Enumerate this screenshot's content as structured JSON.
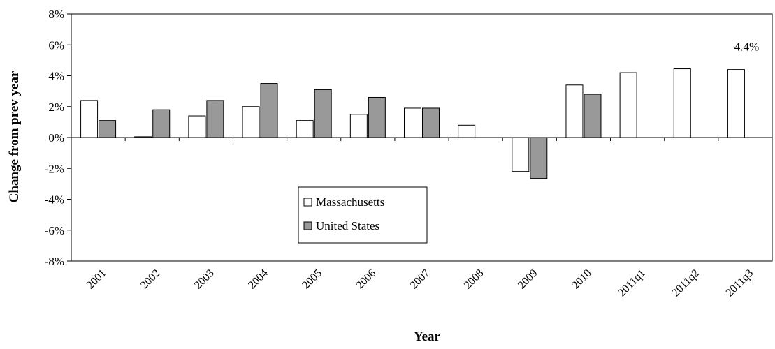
{
  "chart_data": {
    "type": "bar",
    "categories": [
      "2001",
      "2002",
      "2003",
      "2004",
      "2005",
      "2006",
      "2007",
      "2008",
      "2009",
      "2010",
      "2011q1",
      "2011q2",
      "2011q3"
    ],
    "series": [
      {
        "name": "Massachusetts",
        "color": "#ffffff",
        "values": [
          2.4,
          0.05,
          1.4,
          2.0,
          1.1,
          1.5,
          1.9,
          0.8,
          -2.2,
          3.4,
          4.2,
          4.45,
          4.4
        ]
      },
      {
        "name": "United States",
        "color": "#999999",
        "values": [
          1.1,
          1.8,
          2.4,
          3.5,
          3.1,
          2.6,
          1.9,
          null,
          -2.65,
          2.8,
          null,
          null,
          null
        ]
      }
    ],
    "xlabel": "Year",
    "ylabel": "Change from prev year",
    "ylim": [
      -8,
      8
    ],
    "yticks": [
      {
        "value": 8,
        "label": "8%"
      },
      {
        "value": 6,
        "label": "6%"
      },
      {
        "value": 4,
        "label": "4%"
      },
      {
        "value": 2,
        "label": "2%"
      },
      {
        "value": 0,
        "label": "0%"
      },
      {
        "value": -2,
        "label": "-2%"
      },
      {
        "value": -4,
        "label": "-4%"
      },
      {
        "value": -6,
        "label": "-6%"
      },
      {
        "value": -8,
        "label": "-8%"
      }
    ],
    "annotations": [
      {
        "category": "2011q3",
        "value": 4.4,
        "text": "4.4%"
      }
    ],
    "legend": "inside-bottom-center",
    "grid": false
  }
}
